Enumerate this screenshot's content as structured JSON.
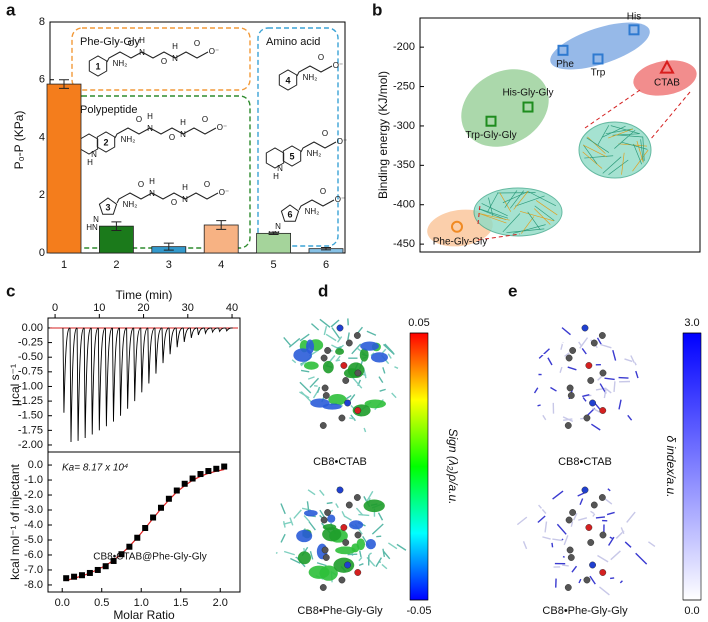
{
  "panel_labels": [
    "a",
    "b",
    "c",
    "d",
    "e"
  ],
  "chart_data": [
    {
      "type": "bar",
      "ylabel": "P₀-P (KPa)",
      "categories": [
        "1",
        "2",
        "3",
        "4",
        "5",
        "6"
      ],
      "values": [
        5.85,
        0.93,
        0.22,
        0.97,
        0.68,
        0.15
      ],
      "errors": [
        0.15,
        0.15,
        0.12,
        0.15,
        0.04,
        0.04
      ],
      "colors": [
        "#f47d1c",
        "#1b7a1b",
        "#3399cc",
        "#f7b283",
        "#a5d49b",
        "#86c1e6"
      ],
      "ylim": [
        0,
        8
      ],
      "yticks": [
        0,
        2,
        4,
        6,
        8
      ],
      "insets": [
        {
          "title": "Phe-Gly-Gly",
          "color": "#f29a3a",
          "structures": [
            {
              "number": "1",
              "ring": "benzene",
              "ring_atoms": [],
              "atoms": [
                "NH₂",
                "O",
                "H",
                "N",
                "O",
                "H",
                "N",
                "O",
                "O⁻"
              ]
            }
          ]
        },
        {
          "title": "Polypeptide",
          "color": "#2e8b2e",
          "structures": [
            {
              "number": "2",
              "ring": "indole",
              "ring_atoms": [
                "N",
                "H"
              ],
              "atoms": [
                "NH₂",
                "O",
                "H",
                "N",
                "O",
                "H",
                "N",
                "O",
                "O⁻"
              ]
            },
            {
              "number": "3",
              "ring": "imidazole",
              "ring_atoms": [
                "N",
                "HN"
              ],
              "atoms": [
                "NH₂",
                "O",
                "H",
                "N",
                "O",
                "H",
                "N",
                "O",
                "O⁻"
              ]
            }
          ]
        },
        {
          "title": "Amino acid",
          "color": "#3ba3d6",
          "structures": [
            {
              "number": "4",
              "ring": "benzene",
              "ring_atoms": [],
              "atoms": [
                "NH₂",
                "O",
                "O⁻"
              ]
            },
            {
              "number": "5",
              "ring": "indole",
              "ring_atoms": [
                "N",
                "H"
              ],
              "atoms": [
                "NH₂",
                "O",
                "O⁻"
              ]
            },
            {
              "number": "6",
              "ring": "imidazole",
              "ring_atoms": [
                "N",
                "HN"
              ],
              "atoms": [
                "NH₂",
                "O",
                "O⁻"
              ]
            }
          ]
        }
      ]
    },
    {
      "type": "scatter",
      "ylabel": "Binding energy (KJ/mol)",
      "categories": [
        "Phe",
        "Trp",
        "His",
        "CTAB",
        "His-Gly-Gly",
        "Trp-Gly-Gly",
        "Phe-Gly-Gly"
      ],
      "values": [
        -204,
        -215,
        -178,
        -226,
        -276,
        -294,
        -428
      ],
      "colors": [
        "#2f7ad0",
        "#2f7ad0",
        "#2f7ad0",
        "#d81e1e",
        "#1e8c1e",
        "#1e8c1e",
        "#f08a24"
      ],
      "markers": [
        "square",
        "square",
        "square",
        "triangle",
        "square",
        "square",
        "circle"
      ],
      "ylim": [
        -460,
        -163
      ],
      "yticks": [
        -200,
        -250,
        -300,
        -350,
        -400,
        -450
      ]
    },
    {
      "type": "itc_trace",
      "xlabel": "Time (min)",
      "ylabel": "μcal s⁻¹",
      "x": [
        2,
        3.6,
        5.2,
        6.8,
        8.4,
        10,
        11.6,
        13.2,
        14.8,
        16.4,
        18,
        19.6,
        21.2,
        22.8,
        24.4,
        26,
        27.6,
        29.2,
        30.8,
        32.4,
        34,
        35.6,
        37.2,
        38.8
      ],
      "values": [
        -1.45,
        -1.95,
        -1.93,
        -1.88,
        -1.82,
        -1.75,
        -1.68,
        -1.6,
        -1.5,
        -1.38,
        -1.25,
        -1.1,
        -0.95,
        -0.78,
        -0.6,
        -0.45,
        -0.33,
        -0.24,
        -0.17,
        -0.12,
        -0.09,
        -0.07,
        -0.06,
        -0.05
      ],
      "color": "#000000",
      "baseline_color": "#d42020",
      "xlim": [
        -1.6,
        41.8
      ],
      "xticks": [
        0,
        10,
        20,
        30,
        40
      ],
      "ylim": [
        -2.12,
        0.17
      ],
      "yticks": [
        {
          "value": 0,
          "label": "0.00"
        },
        {
          "value": -0.25,
          "label": "-0.25"
        },
        {
          "value": -0.5,
          "label": "-0.50"
        },
        {
          "value": -0.75,
          "label": "-0.75"
        },
        {
          "value": -1,
          "label": "-1.00"
        },
        {
          "value": -1.25,
          "label": "-1.25"
        },
        {
          "value": -1.5,
          "label": "-1.50"
        },
        {
          "value": -1.75,
          "label": "-1.75"
        },
        {
          "value": -2,
          "label": "-2.00"
        }
      ]
    },
    {
      "type": "binding",
      "xlabel": "Molar Ratio",
      "ylabel": "kcal mol⁻¹ of injectant",
      "annotation": "Ka= 8.17 x 10⁴",
      "legend_text": "CB8•CTAB@Phe-Gly-Gly",
      "x": [
        0.05,
        0.15,
        0.25,
        0.35,
        0.45,
        0.55,
        0.65,
        0.75,
        0.85,
        0.95,
        1.05,
        1.15,
        1.25,
        1.35,
        1.45,
        1.55,
        1.65,
        1.75,
        1.85,
        1.95,
        2.05
      ],
      "series": [
        {
          "values": [
            -7.55,
            -7.45,
            -7.35,
            -7.2,
            -7.0,
            -6.75,
            -6.4,
            -5.95,
            -5.45,
            -4.85,
            -4.2,
            -3.5,
            -2.85,
            -2.25,
            -1.7,
            -1.25,
            -0.9,
            -0.6,
            -0.4,
            -0.25,
            -0.1
          ],
          "color": "#000000"
        },
        {
          "values": [
            -7.7,
            -7.55,
            -7.4,
            -7.2,
            -6.97,
            -6.7,
            -6.35,
            -5.92,
            -5.42,
            -4.85,
            -4.22,
            -3.56,
            -2.92,
            -2.33,
            -1.8,
            -1.37,
            -1.02,
            -0.75,
            -0.55,
            -0.41,
            -0.3
          ],
          "color": "#e02020"
        }
      ],
      "xlim": [
        -0.18,
        2.25
      ],
      "xticks": [
        {
          "value": 0,
          "label": "0.0"
        },
        {
          "value": 0.5,
          "label": "0.5"
        },
        {
          "value": 1,
          "label": "1.0"
        },
        {
          "value": 1.5,
          "label": "1.5"
        },
        {
          "value": 2,
          "label": "2.0"
        }
      ],
      "ylim": [
        -8.47,
        0.87
      ],
      "yticks": [
        {
          "value": 0,
          "label": "0.0"
        },
        {
          "value": -1,
          "label": "-1.0"
        },
        {
          "value": -2,
          "label": "-2.0"
        },
        {
          "value": -3,
          "label": "-3.0"
        },
        {
          "value": -4,
          "label": "-4.0"
        },
        {
          "value": -5,
          "label": "-5.0"
        },
        {
          "value": -6,
          "label": "-6.0"
        },
        {
          "value": -7,
          "label": "-7.0"
        },
        {
          "value": -8,
          "label": "-8.0"
        }
      ]
    }
  ],
  "figures": [
    {
      "captions": [
        "CB8•CTAB",
        "CB8•Phe-Gly-Gly"
      ],
      "colorbar": {
        "label": "Sign (λ₂)ρ/a.u.",
        "ticks": [
          0.05,
          -0.05
        ],
        "colors": [
          "#ff0000",
          "#ffff00",
          "#00ff00",
          "#00ffff",
          "#0000ff"
        ]
      }
    },
    {
      "captions": [
        "CB8•CTAB",
        "CB8•Phe-Gly-Gly"
      ],
      "colorbar": {
        "label": "δ index/a.u.",
        "ticks": [
          {
            "value": 3,
            "label": "3.0"
          },
          {
            "value": 0,
            "label": "0.0"
          }
        ],
        "colors": [
          "#0000ff",
          "#ffffff"
        ]
      }
    }
  ]
}
